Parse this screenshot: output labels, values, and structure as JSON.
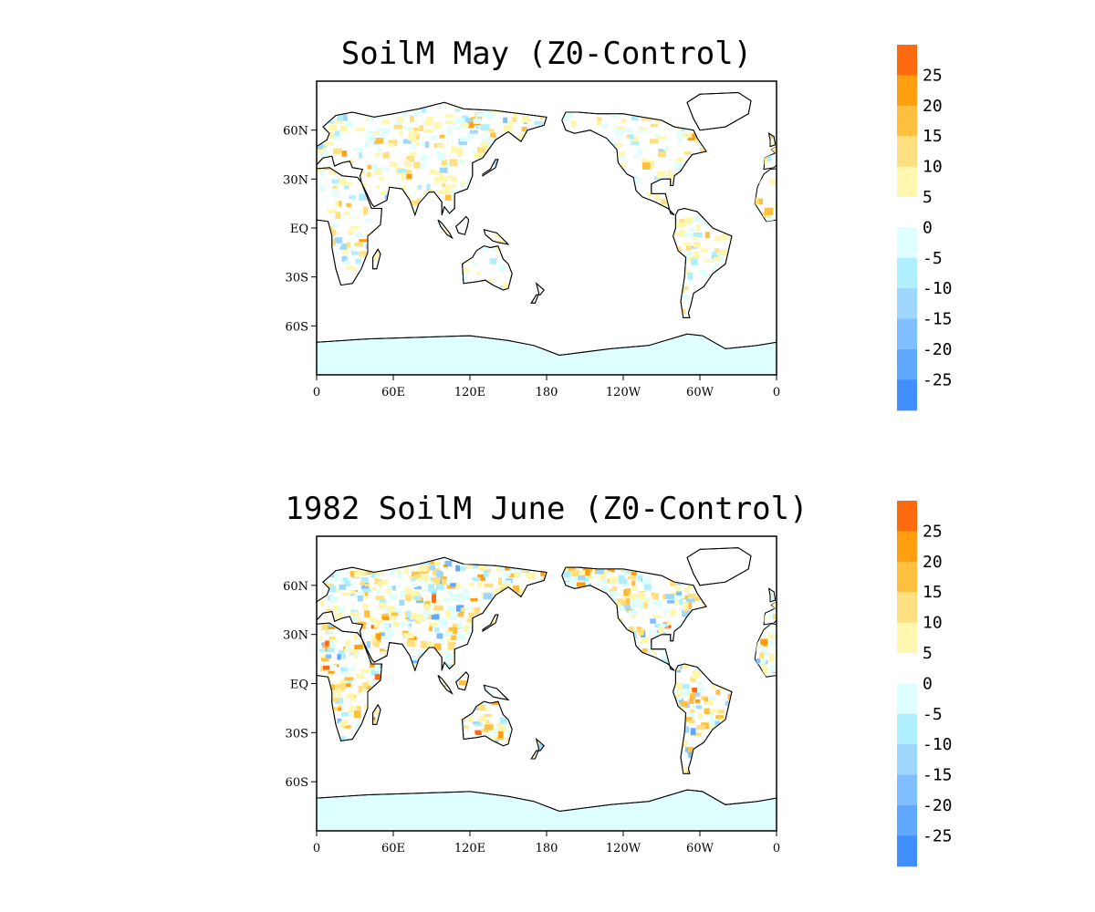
{
  "panels": [
    {
      "title": "SoilM May (Z0-Control)",
      "lon_ticks": [
        "0",
        "60E",
        "120E",
        "180",
        "120W",
        "60W",
        "0"
      ],
      "lat_ticks": [
        "60N",
        "30N",
        "EQ",
        "30S",
        "60S"
      ]
    },
    {
      "title": "1982 SoilM June (Z0-Control)",
      "lon_ticks": [
        "0",
        "60E",
        "120E",
        "180",
        "120W",
        "60W",
        "0"
      ],
      "lat_ticks": [
        "60N",
        "30N",
        "EQ",
        "30S",
        "60S"
      ]
    }
  ],
  "colorbar": {
    "labels": [
      "25",
      "20",
      "15",
      "10",
      "5",
      "0",
      "-5",
      "-10",
      "-15",
      "-20",
      "-25"
    ],
    "colors": [
      "#ff6a0f",
      "#ff9f0f",
      "#ffbf3f",
      "#ffdf7f",
      "#fff7af",
      "#ffffff",
      "#dfffff",
      "#afefff",
      "#9fd7ff",
      "#7fbfff",
      "#5fa7ff",
      "#3f8fff"
    ]
  },
  "palette": {
    "ocean": "#ffffff",
    "land": "#ffffff",
    "antarctica": "#dfffff",
    "coast": "#000000",
    "frame": "#000000"
  }
}
